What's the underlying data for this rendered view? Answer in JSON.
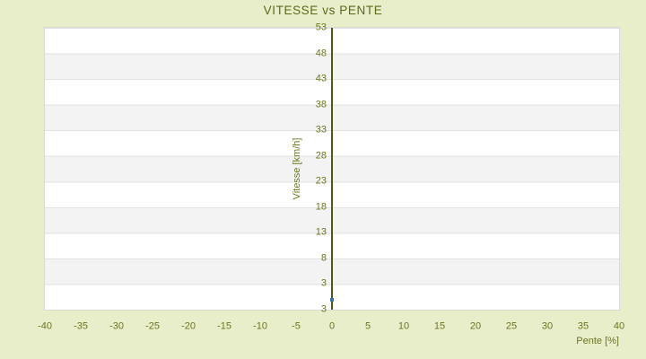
{
  "chart_data": {
    "type": "scatter",
    "title": "VITESSE vs PENTE",
    "xlabel": "Pente [%]",
    "ylabel": "Vitesse [km/h]",
    "x_tick_labels": [
      "-40",
      "-35",
      "-30",
      "-25",
      "-20",
      "-15",
      "-10",
      "-5",
      "0",
      "5",
      "10",
      "15",
      "20",
      "25",
      "30",
      "35",
      "40"
    ],
    "y_tick_labels": [
      "53",
      "48",
      "43",
      "38",
      "33",
      "28",
      "23",
      "18",
      "13",
      "8",
      "3",
      "3"
    ],
    "xlim": [
      -40,
      40
    ],
    "ylim": [
      -2,
      53
    ],
    "grid": "alternating-horizontal-bands",
    "legend": "none",
    "series": [
      {
        "name": "Vitesse",
        "marker": "square",
        "color": "#35789b",
        "points": [
          {
            "x": 0,
            "y": 0
          }
        ]
      }
    ]
  },
  "colors": {
    "background": "#e8edca",
    "title_text": "#5c691b",
    "tick_text": "#6d7522",
    "axis_line": "#4e5a14",
    "band_light": "#ffffff",
    "band_dark": "#f3f3f3",
    "gridline": "#e2e2e2",
    "plot_border": "#d9d9d9",
    "marker": "#35789b"
  }
}
